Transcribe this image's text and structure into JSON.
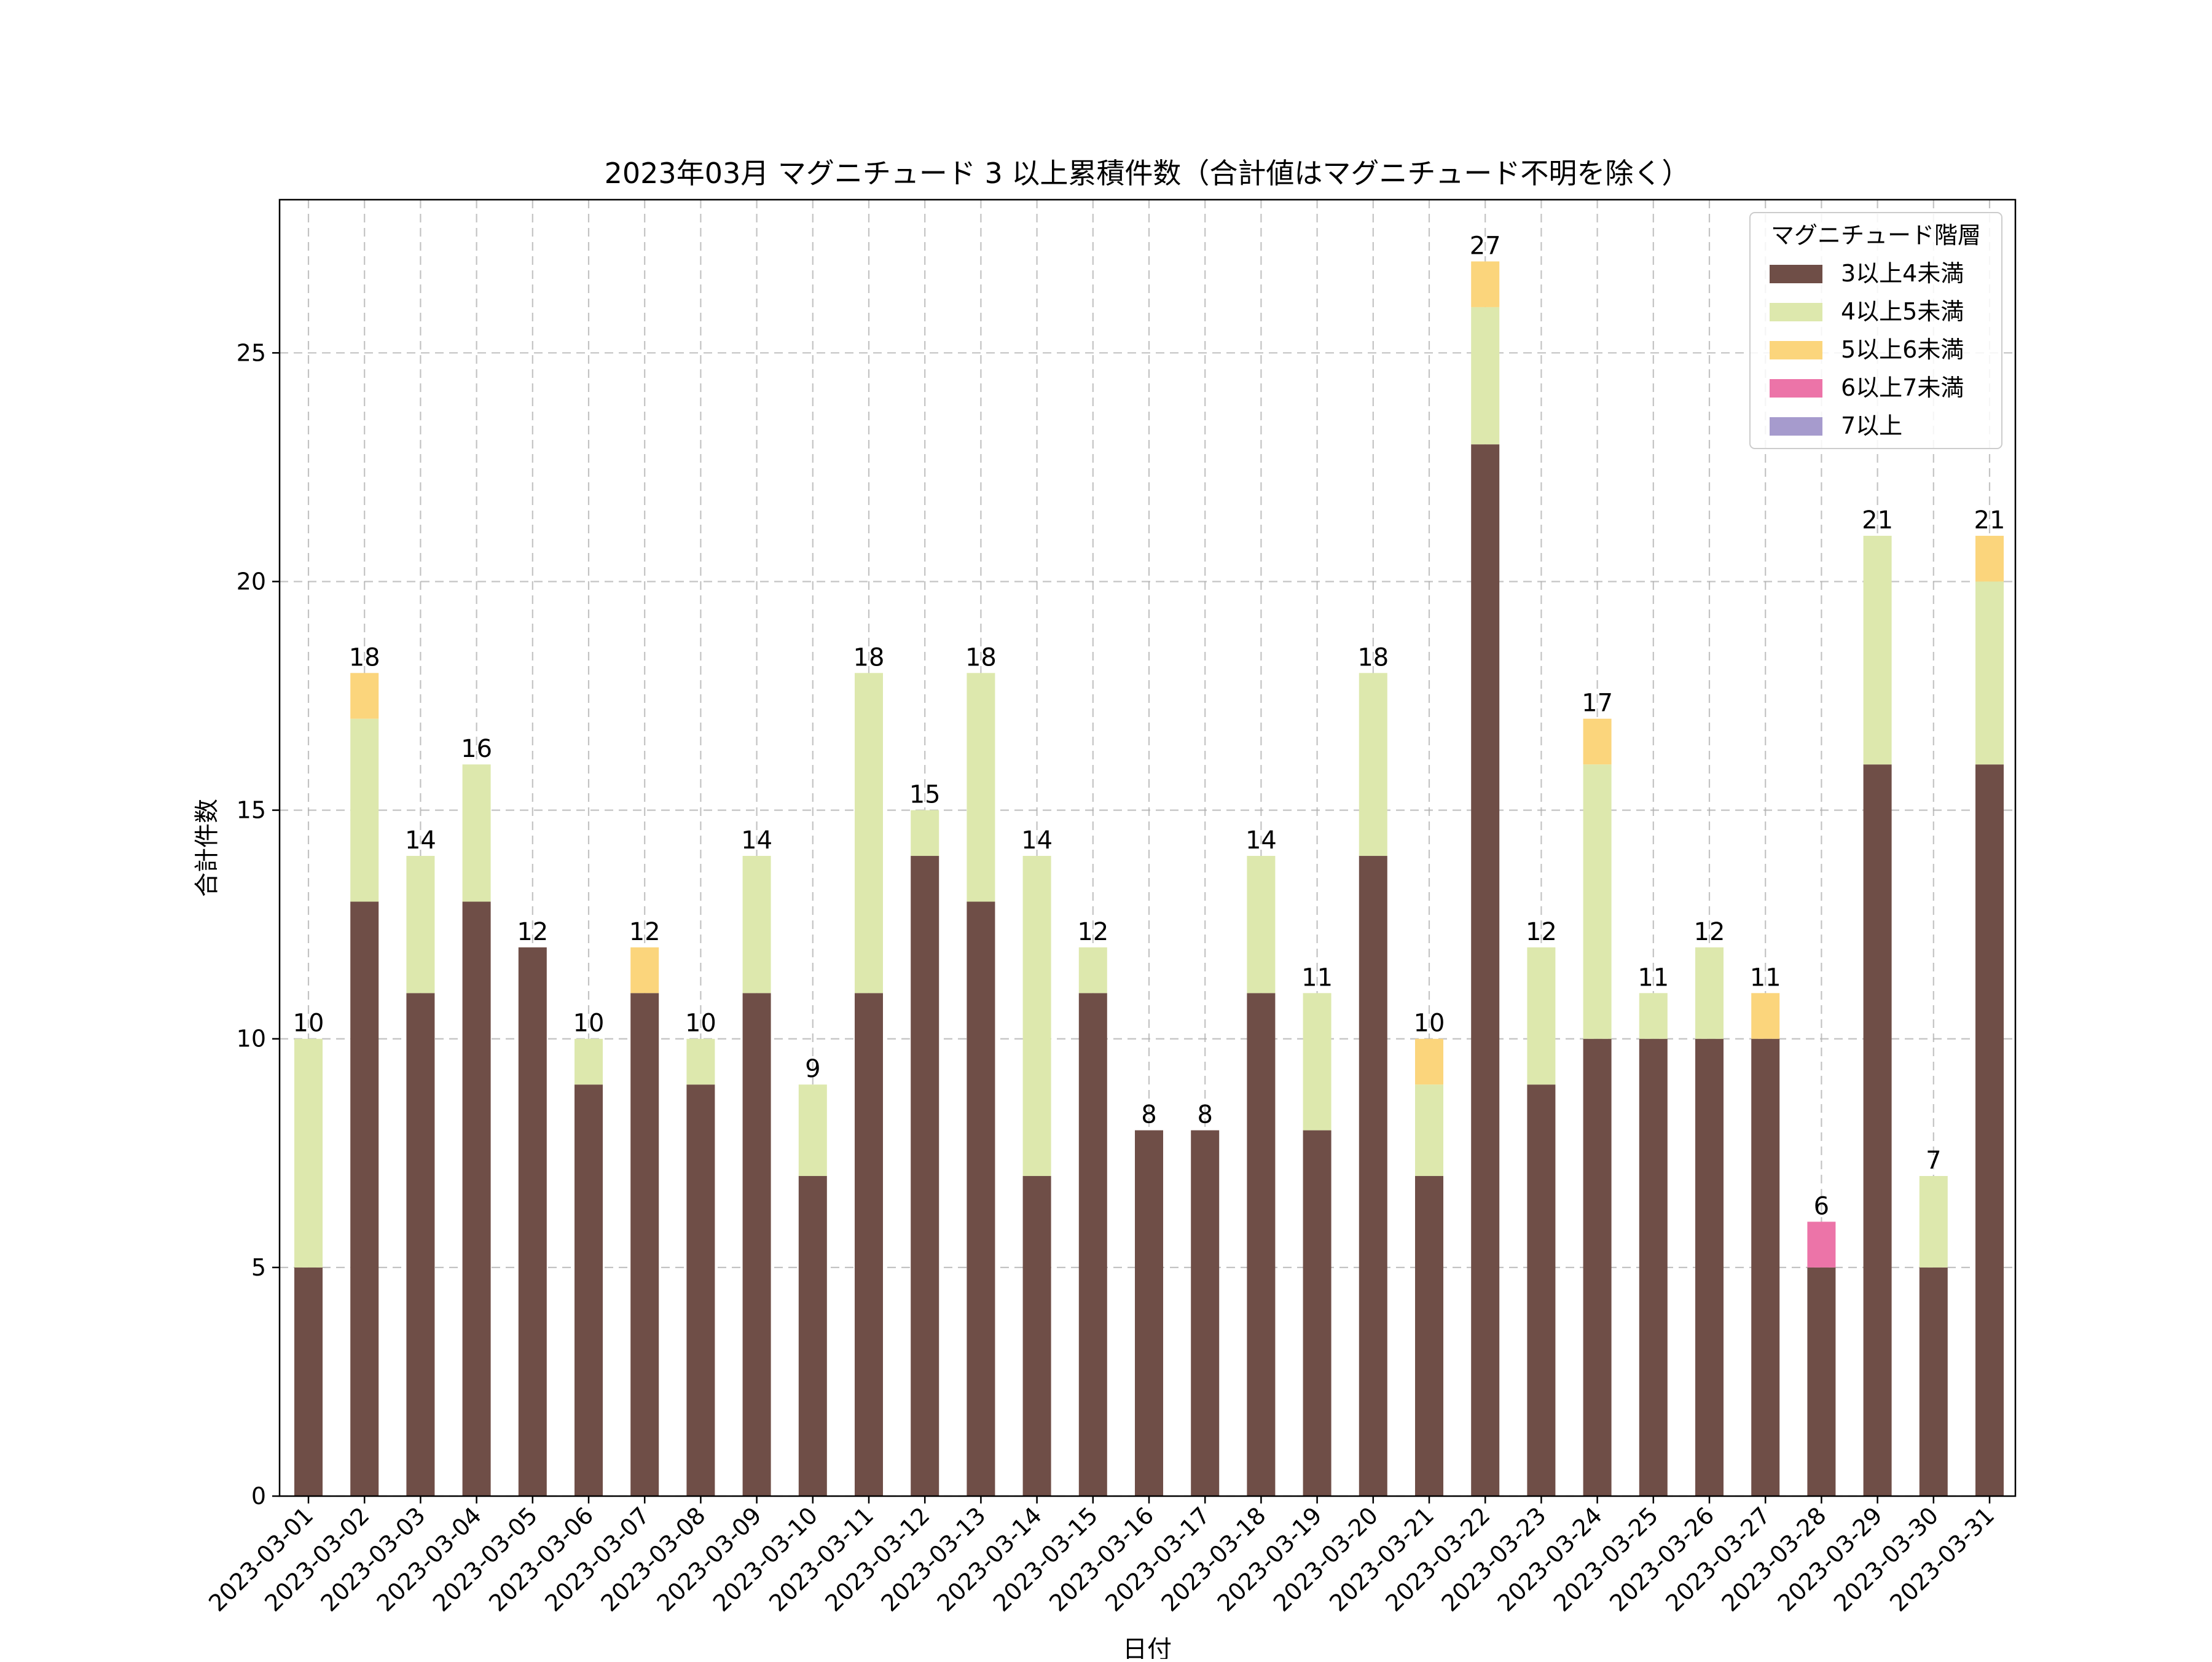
{
  "chart_data": {
    "type": "bar",
    "stacked": true,
    "title": "2023年03月 マグニチュード 3 以上累積件数（合計値はマグニチュード不明を除く）",
    "xlabel": "日付",
    "ylabel": "合計件数",
    "ylim": [
      0,
      28.35
    ],
    "yticks": [
      0,
      5,
      10,
      15,
      20,
      25
    ],
    "grid": true,
    "legend": {
      "title": "マグニチュード階層",
      "position": "top-right"
    },
    "categories": [
      "2023-03-01",
      "2023-03-02",
      "2023-03-03",
      "2023-03-04",
      "2023-03-05",
      "2023-03-06",
      "2023-03-07",
      "2023-03-08",
      "2023-03-09",
      "2023-03-10",
      "2023-03-11",
      "2023-03-12",
      "2023-03-13",
      "2023-03-14",
      "2023-03-15",
      "2023-03-16",
      "2023-03-17",
      "2023-03-18",
      "2023-03-19",
      "2023-03-20",
      "2023-03-21",
      "2023-03-22",
      "2023-03-23",
      "2023-03-24",
      "2023-03-25",
      "2023-03-26",
      "2023-03-27",
      "2023-03-28",
      "2023-03-29",
      "2023-03-30",
      "2023-03-31"
    ],
    "series": [
      {
        "name": "3以上4未満",
        "color": "#6f4e47",
        "values": [
          5,
          13,
          11,
          13,
          12,
          9,
          11,
          9,
          11,
          7,
          11,
          14,
          13,
          7,
          11,
          8,
          8,
          11,
          8,
          14,
          7,
          23,
          9,
          10,
          10,
          10,
          10,
          5,
          16,
          5,
          16
        ]
      },
      {
        "name": "4以上5未満",
        "color": "#dde8ad",
        "values": [
          5,
          4,
          3,
          3,
          0,
          1,
          0,
          1,
          3,
          2,
          7,
          1,
          5,
          7,
          1,
          0,
          0,
          3,
          3,
          4,
          2,
          3,
          3,
          6,
          1,
          2,
          0,
          0,
          5,
          2,
          4
        ]
      },
      {
        "name": "5以上6未満",
        "color": "#fbd57c",
        "values": [
          0,
          1,
          0,
          0,
          0,
          0,
          1,
          0,
          0,
          0,
          0,
          0,
          0,
          0,
          0,
          0,
          0,
          0,
          0,
          0,
          1,
          1,
          0,
          1,
          0,
          0,
          1,
          0,
          0,
          0,
          1
        ]
      },
      {
        "name": "6以上7未満",
        "color": "#ec74a8",
        "values": [
          0,
          0,
          0,
          0,
          0,
          0,
          0,
          0,
          0,
          0,
          0,
          0,
          0,
          0,
          0,
          0,
          0,
          0,
          0,
          0,
          0,
          0,
          0,
          0,
          0,
          0,
          0,
          1,
          0,
          0,
          0
        ]
      },
      {
        "name": "7以上",
        "color": "#a69bcd",
        "values": [
          0,
          0,
          0,
          0,
          0,
          0,
          0,
          0,
          0,
          0,
          0,
          0,
          0,
          0,
          0,
          0,
          0,
          0,
          0,
          0,
          0,
          0,
          0,
          0,
          0,
          0,
          0,
          0,
          0,
          0,
          0
        ]
      }
    ],
    "totals": [
      10,
      18,
      14,
      16,
      12,
      10,
      12,
      10,
      14,
      9,
      18,
      15,
      18,
      14,
      12,
      8,
      8,
      14,
      11,
      18,
      10,
      27,
      12,
      17,
      11,
      12,
      11,
      6,
      21,
      7,
      21
    ]
  }
}
